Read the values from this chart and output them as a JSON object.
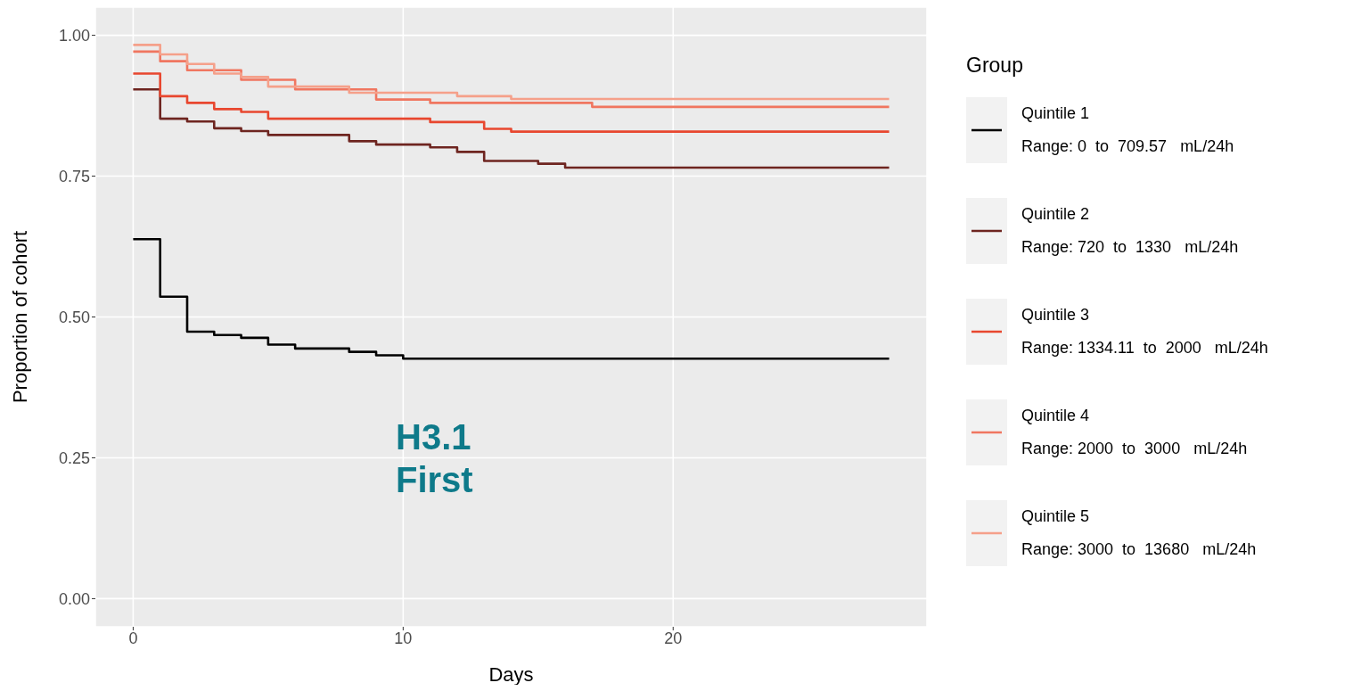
{
  "chart_data": {
    "type": "step",
    "xlabel": "Days",
    "ylabel": "Proportion of cohort",
    "legend_title": "Group",
    "legend": "right",
    "grid": true,
    "line_style": "solid",
    "marker": "none",
    "xlim": [
      -1.4,
      29.4
    ],
    "xticks": [
      0,
      10,
      20
    ],
    "ylim": [
      -0.05,
      1.05
    ],
    "yticks": [
      {
        "value": 0,
        "label": "0.00"
      },
      {
        "value": 0.25,
        "label": "0.25"
      },
      {
        "value": 0.5,
        "label": "0.50"
      },
      {
        "value": 0.75,
        "label": "0.75"
      },
      {
        "value": 1,
        "label": "1.00"
      }
    ],
    "annotations": [
      "H3.1\nFirst"
    ],
    "series": [
      {
        "name": "Quintile 1\nRange: 0  to  709.57   mL/24h",
        "color": "#000000",
        "x": [
          0,
          1,
          2,
          3,
          4,
          5,
          6,
          8,
          9,
          10,
          28
        ],
        "values": [
          0.638,
          0.536,
          0.474,
          0.468,
          0.463,
          0.451,
          0.444,
          0.438,
          0.432,
          0.426,
          0.426
        ]
      },
      {
        "name": "Quintile 2\nRange: 720  to  1330   mL/24h",
        "color": "#6e2520",
        "x": [
          0,
          1,
          2,
          3,
          4,
          5,
          8,
          9,
          11,
          12,
          13,
          15,
          16,
          28
        ],
        "values": [
          0.904,
          0.852,
          0.847,
          0.835,
          0.83,
          0.823,
          0.812,
          0.806,
          0.801,
          0.793,
          0.777,
          0.772,
          0.765,
          0.765
        ]
      },
      {
        "name": "Quintile 3\nRange: 1334.11  to  2000   mL/24h",
        "color": "#e8472f",
        "x": [
          0,
          1,
          2,
          3,
          4,
          5,
          11,
          13,
          14,
          28
        ],
        "values": [
          0.932,
          0.892,
          0.88,
          0.869,
          0.864,
          0.852,
          0.846,
          0.834,
          0.829,
          0.829
        ]
      },
      {
        "name": "Quintile 4\nRange: 2000  to  3000   mL/24h",
        "color": "#f07660",
        "x": [
          0,
          1,
          2,
          4,
          6,
          9,
          11,
          17,
          28
        ],
        "values": [
          0.971,
          0.954,
          0.938,
          0.921,
          0.904,
          0.886,
          0.88,
          0.873,
          0.873
        ]
      },
      {
        "name": "Quintile 5\nRange: 3000  to  13680   mL/24h",
        "color": "#f5a08a",
        "x": [
          0,
          1,
          2,
          3,
          4,
          5,
          8,
          12,
          14,
          28
        ],
        "values": [
          0.983,
          0.966,
          0.949,
          0.932,
          0.926,
          0.909,
          0.898,
          0.892,
          0.887,
          0.887
        ]
      }
    ]
  }
}
